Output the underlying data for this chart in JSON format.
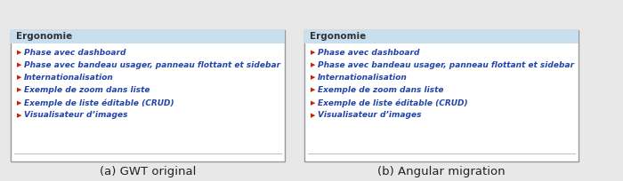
{
  "bg_color": "#e8e8e8",
  "panel_bg": "#ffffff",
  "header_bg": "#c8dff0",
  "header_text": "Ergonomie",
  "header_color": "#333333",
  "header_fontsize": 7.5,
  "link_color": "#2244aa",
  "bullet_color": "#cc2200",
  "item_fontsize": 6.5,
  "items": [
    "Phase avec dashboard",
    "Phase avec bandeau usager, panneau flottant et sidebar",
    "Internationalisation",
    "Exemple de zoom dans liste",
    "Exemple de liste éditable (CRUD)",
    "Visualisateur d’images"
  ],
  "caption_left": "(a) GWT original",
  "caption_right": "(b) Angular migration",
  "caption_fontsize": 9.5,
  "caption_color": "#222222"
}
